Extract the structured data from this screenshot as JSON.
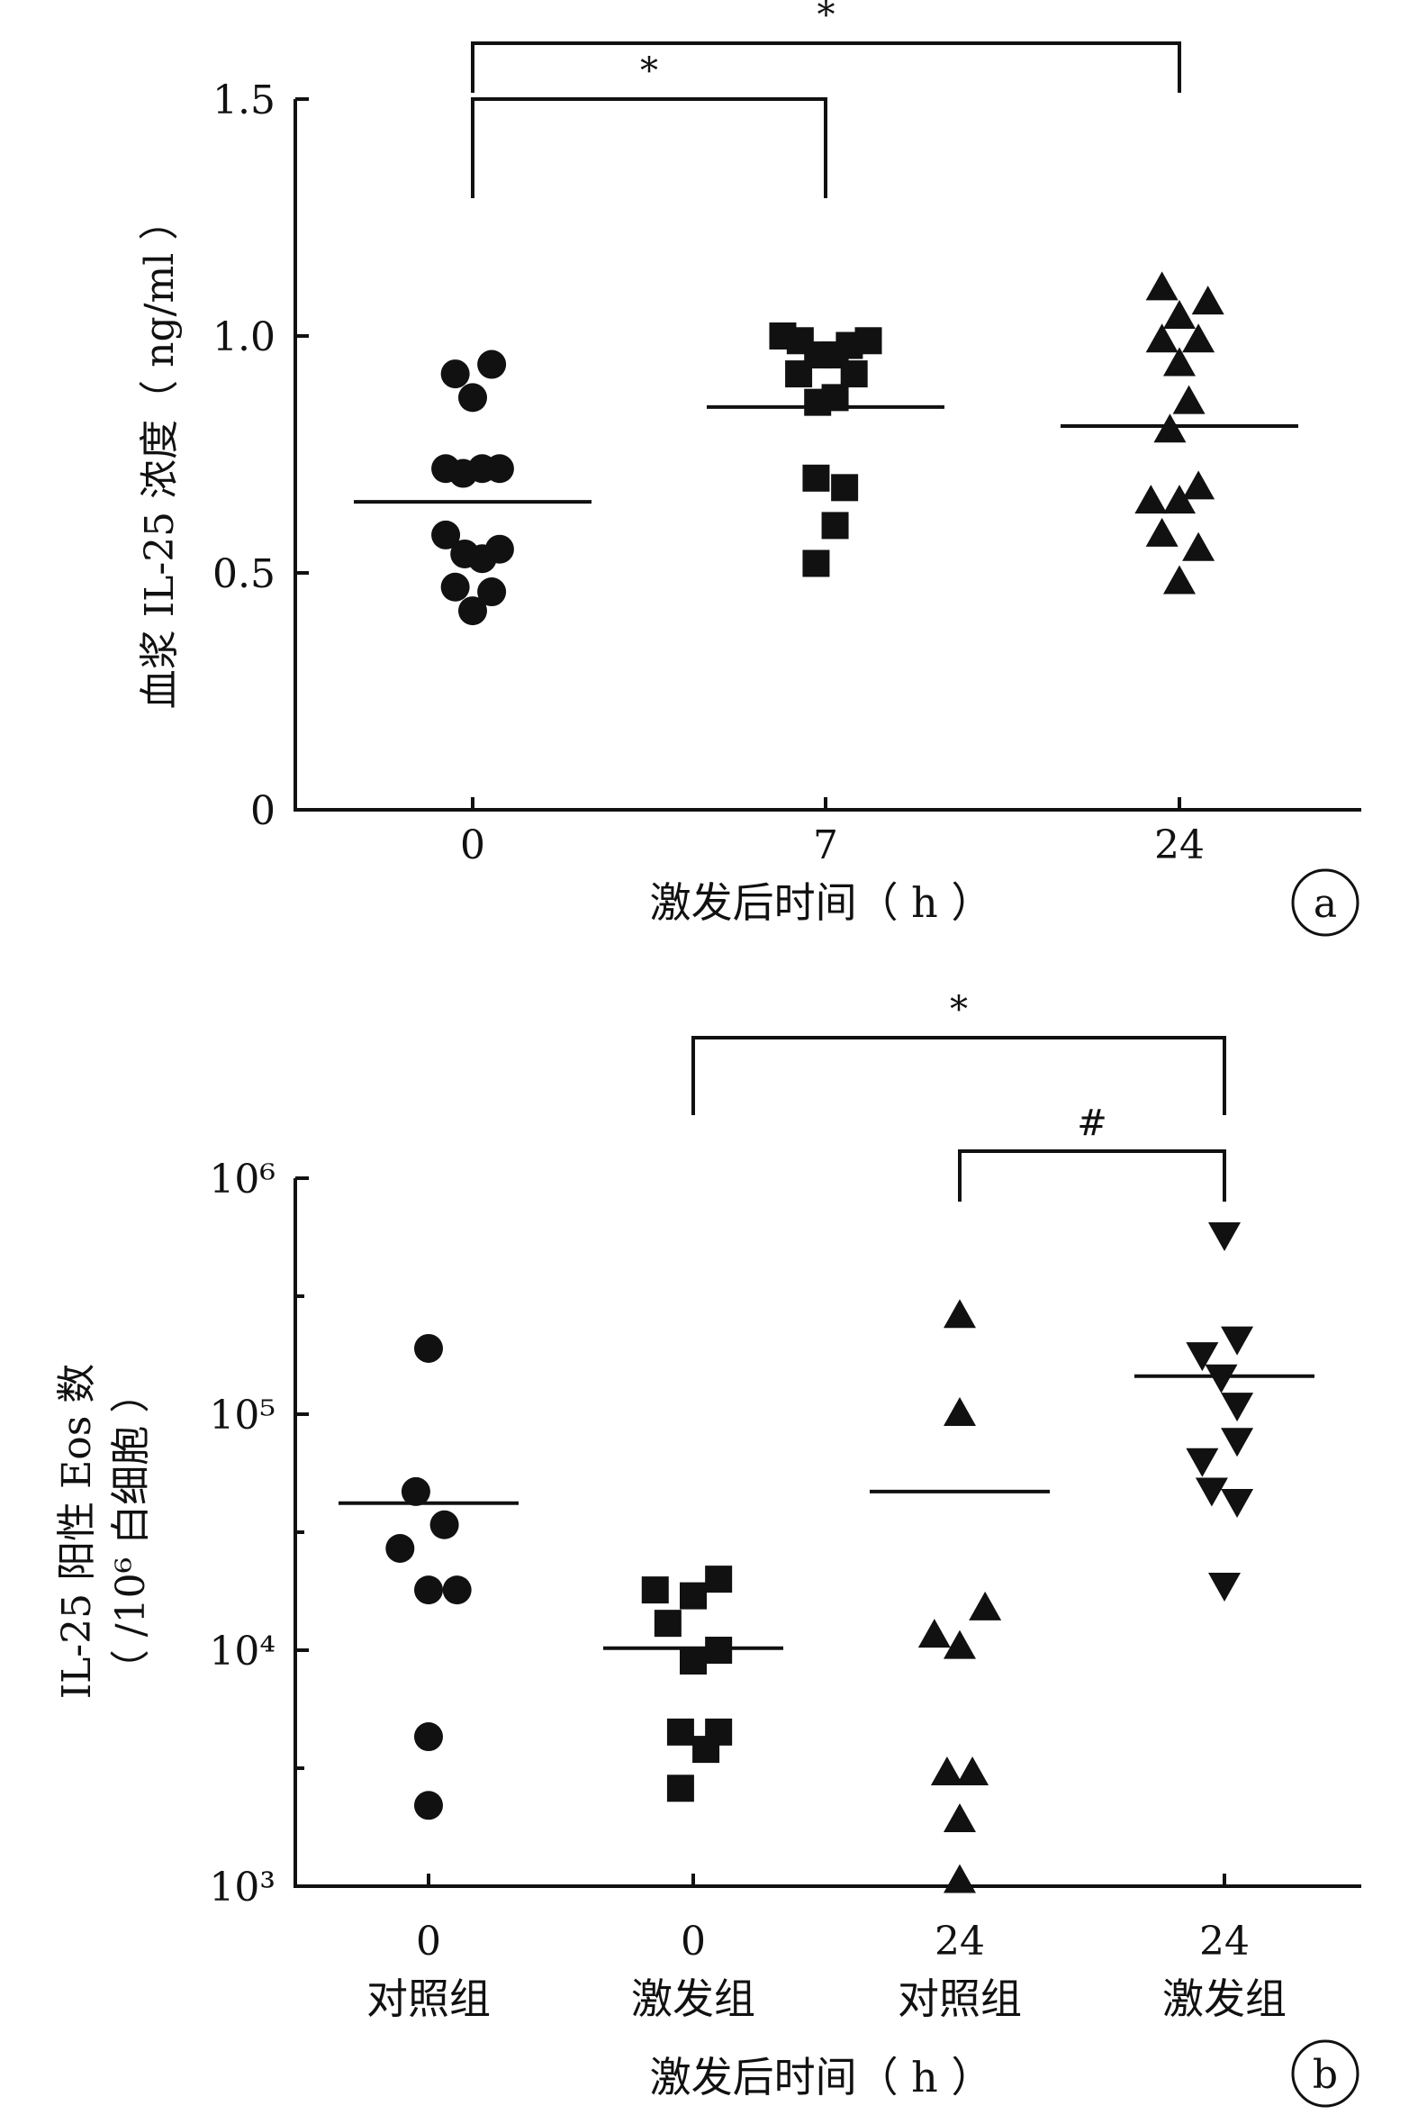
{
  "chart_data": [
    {
      "panel_label": "a",
      "type": "scatter",
      "ylabel": "血浆 IL-25 浓度（ ng/ml ）",
      "xlabel": "激发后时间（ h ）",
      "ylim": [
        0,
        1.5
      ],
      "y_scale": "linear",
      "y_ticks": [
        "0",
        "0.5",
        "1.0",
        "1.5"
      ],
      "y_tick_values": [
        0,
        0.5,
        1.0,
        1.5
      ],
      "categories": [
        {
          "tick": "0",
          "sub": ""
        },
        {
          "tick": "7",
          "sub": ""
        },
        {
          "tick": "24",
          "sub": ""
        }
      ],
      "series": [
        {
          "marker": "circle",
          "mean": 0.65,
          "points": [
            {
              "dx": -0.22,
              "y": 0.92
            },
            {
              "dx": 0.0,
              "y": 0.87
            },
            {
              "dx": 0.24,
              "y": 0.94
            },
            {
              "dx": -0.34,
              "y": 0.72
            },
            {
              "dx": -0.12,
              "y": 0.71
            },
            {
              "dx": 0.12,
              "y": 0.72
            },
            {
              "dx": 0.34,
              "y": 0.72
            },
            {
              "dx": -0.34,
              "y": 0.58
            },
            {
              "dx": -0.1,
              "y": 0.54
            },
            {
              "dx": 0.12,
              "y": 0.53
            },
            {
              "dx": 0.34,
              "y": 0.55
            },
            {
              "dx": -0.22,
              "y": 0.47
            },
            {
              "dx": 0.0,
              "y": 0.42
            },
            {
              "dx": 0.24,
              "y": 0.46
            }
          ]
        },
        {
          "marker": "square",
          "mean": 0.85,
          "points": [
            {
              "dx": -0.54,
              "y": 1.0
            },
            {
              "dx": -0.32,
              "y": 0.99
            },
            {
              "dx": 0.3,
              "y": 0.98
            },
            {
              "dx": 0.54,
              "y": 0.99
            },
            {
              "dx": -0.34,
              "y": 0.92
            },
            {
              "dx": -0.1,
              "y": 0.96
            },
            {
              "dx": 0.12,
              "y": 0.96
            },
            {
              "dx": 0.36,
              "y": 0.92
            },
            {
              "dx": -0.1,
              "y": 0.86
            },
            {
              "dx": 0.12,
              "y": 0.87
            },
            {
              "dx": -0.12,
              "y": 0.7
            },
            {
              "dx": 0.24,
              "y": 0.68
            },
            {
              "dx": 0.12,
              "y": 0.6
            },
            {
              "dx": -0.12,
              "y": 0.52
            }
          ]
        },
        {
          "marker": "triangle-up",
          "mean": 0.81,
          "points": [
            {
              "dx": -0.22,
              "y": 1.1
            },
            {
              "dx": 0.0,
              "y": 1.04
            },
            {
              "dx": 0.36,
              "y": 1.07
            },
            {
              "dx": -0.22,
              "y": 0.99
            },
            {
              "dx": 0.24,
              "y": 0.99
            },
            {
              "dx": 0.0,
              "y": 0.94
            },
            {
              "dx": 0.12,
              "y": 0.86
            },
            {
              "dx": -0.12,
              "y": 0.8
            },
            {
              "dx": 0.24,
              "y": 0.68
            },
            {
              "dx": -0.36,
              "y": 0.65
            },
            {
              "dx": 0.0,
              "y": 0.65
            },
            {
              "dx": -0.22,
              "y": 0.58
            },
            {
              "dx": 0.24,
              "y": 0.55
            },
            {
              "dx": 0.0,
              "y": 0.48
            }
          ]
        }
      ],
      "significance": [
        {
          "from": 0,
          "to": 2,
          "label": "*",
          "level": 2
        },
        {
          "from": 0,
          "to": 1,
          "label": "*",
          "level": 1
        }
      ]
    },
    {
      "panel_label": "b",
      "type": "scatter",
      "ylabel": "IL-25 阳性 Eos 数",
      "ylabel2": "（ /10⁶ 白细胞 ）",
      "xlabel": "激发后时间（ h ）",
      "ylim": [
        1000,
        1000000
      ],
      "y_scale": "log",
      "y_ticks": [
        "10³",
        "10⁴",
        "10⁵",
        "10⁶"
      ],
      "y_tick_values": [
        1000,
        10000,
        100000,
        1000000
      ],
      "categories": [
        {
          "tick": "0",
          "sub": "对照组"
        },
        {
          "tick": "0",
          "sub": "激发组"
        },
        {
          "tick": "24",
          "sub": "对照组"
        },
        {
          "tick": "24",
          "sub": "激发组"
        }
      ],
      "series": [
        {
          "marker": "circle",
          "mean": 42000,
          "points": [
            {
              "dx": 0.0,
              "y": 190000
            },
            {
              "dx": -0.08,
              "y": 47000
            },
            {
              "dx": 0.1,
              "y": 34000
            },
            {
              "dx": -0.18,
              "y": 27000
            },
            {
              "dx": 0.0,
              "y": 18000
            },
            {
              "dx": 0.18,
              "y": 18000
            },
            {
              "dx": 0.0,
              "y": 4300
            },
            {
              "dx": 0.0,
              "y": 2200
            }
          ]
        },
        {
          "marker": "square",
          "mean": 10200,
          "points": [
            {
              "dx": -0.24,
              "y": 18000
            },
            {
              "dx": 0.0,
              "y": 17000
            },
            {
              "dx": 0.16,
              "y": 20000
            },
            {
              "dx": -0.16,
              "y": 13000
            },
            {
              "dx": 0.16,
              "y": 10000
            },
            {
              "dx": 0.0,
              "y": 9000
            },
            {
              "dx": -0.08,
              "y": 4500
            },
            {
              "dx": 0.16,
              "y": 4500
            },
            {
              "dx": 0.08,
              "y": 3800
            },
            {
              "dx": -0.08,
              "y": 2600
            }
          ]
        },
        {
          "marker": "triangle-up",
          "mean": 47000,
          "points": [
            {
              "dx": 0.0,
              "y": 260000
            },
            {
              "dx": 0.0,
              "y": 100000
            },
            {
              "dx": 0.16,
              "y": 15000
            },
            {
              "dx": -0.16,
              "y": 11500
            },
            {
              "dx": 0.0,
              "y": 10300
            },
            {
              "dx": -0.08,
              "y": 3000
            },
            {
              "dx": 0.08,
              "y": 3000
            },
            {
              "dx": 0.0,
              "y": 1900
            },
            {
              "dx": 0.0,
              "y": 1050
            }
          ]
        },
        {
          "marker": "triangle-down",
          "mean": 145000,
          "points": [
            {
              "dx": 0.0,
              "y": 580000
            },
            {
              "dx": -0.14,
              "y": 180000
            },
            {
              "dx": 0.08,
              "y": 210000
            },
            {
              "dx": -0.02,
              "y": 145000
            },
            {
              "dx": 0.08,
              "y": 110000
            },
            {
              "dx": 0.08,
              "y": 78000
            },
            {
              "dx": -0.14,
              "y": 64000
            },
            {
              "dx": -0.08,
              "y": 48000
            },
            {
              "dx": 0.08,
              "y": 43000
            },
            {
              "dx": 0.0,
              "y": 19000
            }
          ]
        }
      ],
      "significance": [
        {
          "from": 1,
          "to": 3,
          "label": "*",
          "level": 2
        },
        {
          "from": 2,
          "to": 3,
          "label": "#",
          "level": 1
        }
      ]
    }
  ]
}
